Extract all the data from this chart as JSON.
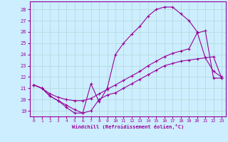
{
  "xlabel": "Windchill (Refroidissement éolien,°C)",
  "background_color": "#cceeff",
  "grid_color": "#b0d8d8",
  "line_color": "#990099",
  "xlim": [
    -0.5,
    23.5
  ],
  "ylim": [
    18.5,
    28.7
  ],
  "yticks": [
    19,
    20,
    21,
    22,
    23,
    24,
    25,
    26,
    27,
    28
  ],
  "xticks": [
    0,
    1,
    2,
    3,
    4,
    5,
    6,
    7,
    8,
    9,
    10,
    11,
    12,
    13,
    14,
    15,
    16,
    17,
    18,
    19,
    20,
    21,
    22,
    23
  ],
  "line1_x": [
    0,
    1,
    2,
    3,
    4,
    5,
    6,
    7,
    8,
    9,
    10,
    11,
    12,
    13,
    14,
    15,
    16,
    17,
    18,
    19,
    20,
    21,
    22,
    23
  ],
  "line1_y": [
    21.3,
    21.0,
    20.3,
    19.9,
    19.5,
    19.1,
    18.8,
    19.0,
    20.0,
    20.4,
    20.6,
    21.0,
    21.4,
    21.8,
    22.2,
    22.6,
    23.0,
    23.2,
    23.4,
    23.5,
    23.6,
    23.7,
    23.8,
    21.9
  ],
  "line2_x": [
    0,
    1,
    2,
    3,
    4,
    5,
    6,
    7,
    8,
    9,
    10,
    11,
    12,
    13,
    14,
    15,
    16,
    17,
    18,
    19,
    20,
    21,
    22,
    23
  ],
  "line2_y": [
    21.3,
    21.0,
    20.5,
    20.2,
    20.0,
    19.9,
    19.9,
    20.1,
    20.5,
    20.9,
    21.3,
    21.7,
    22.1,
    22.5,
    23.0,
    23.4,
    23.8,
    24.1,
    24.3,
    24.5,
    25.9,
    26.1,
    21.9,
    21.9
  ],
  "line3_x": [
    0,
    1,
    2,
    3,
    4,
    5,
    6,
    7,
    8,
    9,
    10,
    11,
    12,
    13,
    14,
    15,
    16,
    17,
    18,
    19,
    20,
    21,
    22,
    23
  ],
  "line3_y": [
    21.3,
    21.0,
    20.3,
    19.9,
    19.3,
    18.8,
    18.8,
    21.4,
    19.8,
    21.0,
    24.0,
    25.0,
    25.8,
    26.5,
    27.4,
    28.0,
    28.2,
    28.2,
    27.6,
    27.0,
    26.0,
    23.7,
    22.5,
    22.0
  ]
}
